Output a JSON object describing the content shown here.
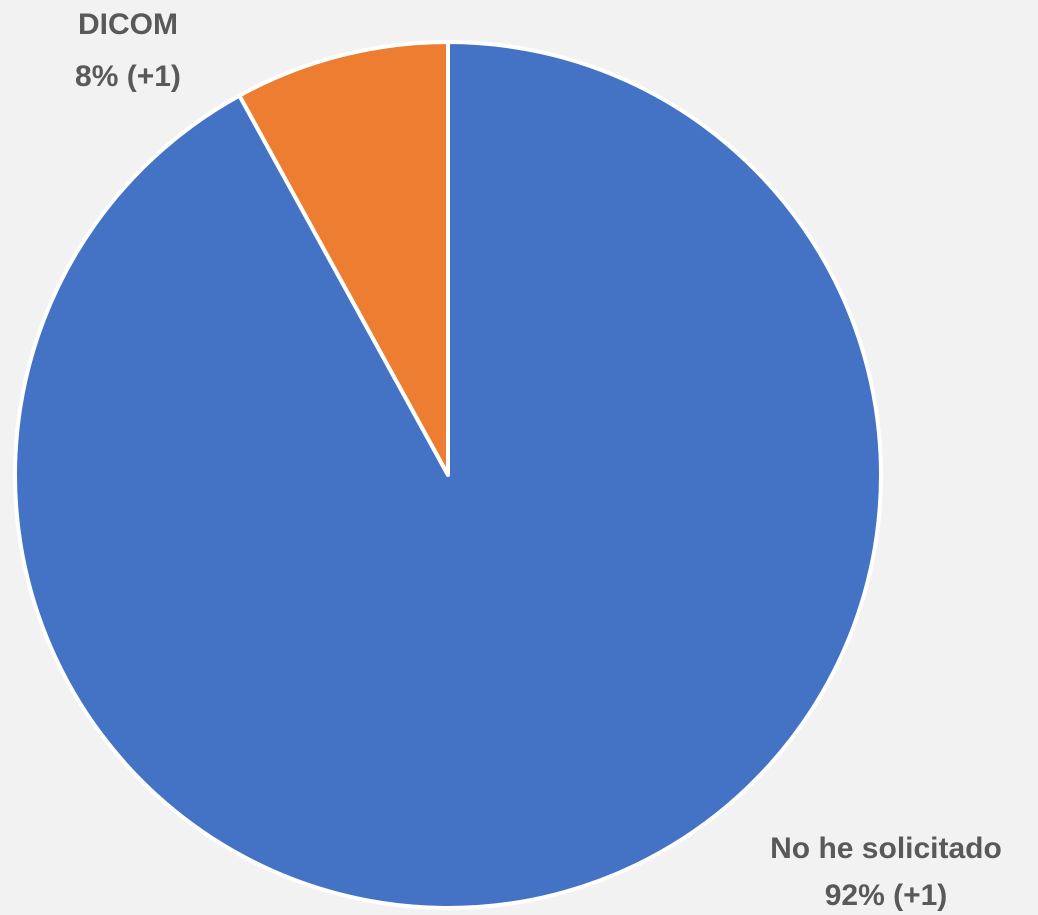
{
  "chart_data": {
    "type": "pie",
    "title": "",
    "start_angle_deg": 0,
    "direction": "clockwise",
    "slices": [
      {
        "name": "No he solicitado",
        "value": 92,
        "label_name": "No he solicitado",
        "label_value": "92% (+1)",
        "color": "#4472c4"
      },
      {
        "name": "DICOM",
        "value": 8,
        "label_name": "DICOM",
        "label_value": "8% (+1)",
        "color": "#ed7d31"
      }
    ],
    "legend": "none"
  }
}
